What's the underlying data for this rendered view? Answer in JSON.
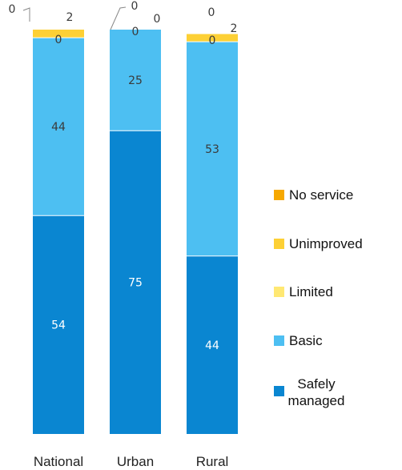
{
  "chart_data": {
    "type": "bar",
    "stacked": true,
    "categories": [
      "National",
      "Urban",
      "Rural"
    ],
    "series": [
      {
        "name": "Safely managed",
        "values": [
          54,
          75,
          44
        ],
        "color": "#0A86D1"
      },
      {
        "name": "Basic",
        "values": [
          44,
          25,
          53
        ],
        "color": "#4DBFF2"
      },
      {
        "name": "Limited",
        "values": [
          0,
          0,
          0
        ],
        "color": "#FFE873"
      },
      {
        "name": "Unimproved",
        "values": [
          2,
          0,
          2
        ],
        "color": "#FDD035"
      },
      {
        "name": "No service",
        "values": [
          0,
          0,
          0
        ],
        "color": "#F6A800"
      }
    ],
    "legend_order": [
      "No service",
      "Unimproved",
      "Limited",
      "Basic",
      "Safely managed"
    ],
    "legend_display": [
      "No service",
      "Unimproved",
      "Limited",
      "Basic",
      "Safely\nmanaged"
    ],
    "legend_position": "right",
    "ylim": [
      0,
      100
    ],
    "grid": false,
    "value_label_color": "#3a3a3a"
  }
}
